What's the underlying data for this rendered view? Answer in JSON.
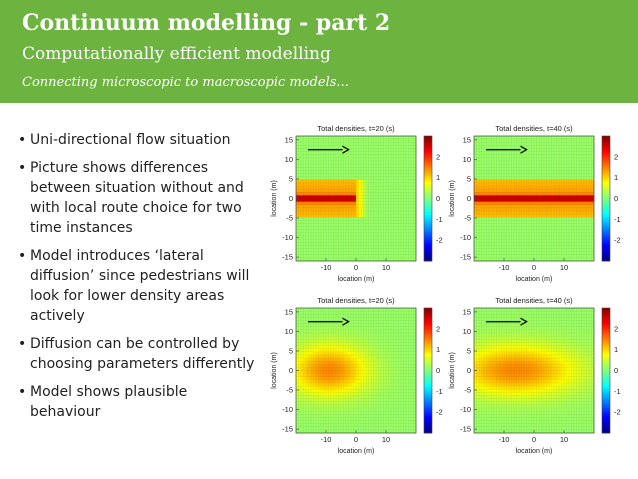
{
  "slide": {
    "title": "Continuum modelling - part 2",
    "subtitle": "Computationally efficient modelling",
    "tagline": "Connecting microscopic to macroscopic models...",
    "bullets": [
      "Uni-directional flow situation",
      "Picture shows differences between situation without and with local route choice for two time instances",
      "Model introduces ‘lateral diffusion’ since pedestrians will look for lower density areas actively",
      "Diffusion can be controlled by choosing parameters differently",
      "Model shows plausible behaviour"
    ],
    "colors": {
      "header": "#6db33f",
      "field": "#62d162",
      "arrow": "#111111"
    }
  },
  "chart_data": [
    {
      "type": "heatmap",
      "title": "Total densities, t=20 (s)",
      "xlabel": "location (m)",
      "ylabel": "location (m)",
      "xticks": [
        "-10",
        "0",
        "10"
      ],
      "yticks": [
        "15",
        "10",
        "5",
        "0",
        "-5",
        "-10",
        "-15"
      ],
      "xlim": [
        -20,
        20
      ],
      "ylim": [
        -16,
        16
      ],
      "colorbar_ticks": [
        "2",
        "1",
        "0",
        "-1",
        "-2"
      ],
      "clim": [
        -3,
        3
      ],
      "pattern": "band",
      "band_half_width": 5,
      "x_extent": 0,
      "arrow": "right"
    },
    {
      "type": "heatmap",
      "title": "Total densities, t=40 (s)",
      "xlabel": "location (m)",
      "ylabel": "location (m)",
      "xticks": [
        "-10",
        "0",
        "10"
      ],
      "yticks": [
        "15",
        "10",
        "5",
        "0",
        "-5",
        "-10",
        "-15"
      ],
      "xlim": [
        -20,
        20
      ],
      "ylim": [
        -16,
        16
      ],
      "colorbar_ticks": [
        "2",
        "1",
        "0",
        "-1",
        "-2"
      ],
      "clim": [
        -3,
        3
      ],
      "pattern": "band",
      "band_half_width": 5,
      "x_extent": 20,
      "arrow": "right"
    },
    {
      "type": "heatmap",
      "title": "Total densities, t=20 (s)",
      "xlabel": "location (m)",
      "ylabel": "location (m)",
      "xticks": [
        "-10",
        "0",
        "10"
      ],
      "yticks": [
        "15",
        "10",
        "5",
        "0",
        "-5",
        "-10",
        "-15"
      ],
      "xlim": [
        -20,
        20
      ],
      "ylim": [
        -16,
        16
      ],
      "colorbar_ticks": [
        "2",
        "1",
        "0",
        "-1",
        "-2"
      ],
      "clim": [
        -3,
        3
      ],
      "pattern": "diffuse",
      "band_half_width": 7,
      "x_extent": 0,
      "arrow": "right"
    },
    {
      "type": "heatmap",
      "title": "Total densities, t=40 (s)",
      "xlabel": "location (m)",
      "ylabel": "location (m)",
      "xticks": [
        "-10",
        "0",
        "10"
      ],
      "yticks": [
        "15",
        "10",
        "5",
        "0",
        "-5",
        "-10",
        "-15"
      ],
      "xlim": [
        -20,
        20
      ],
      "ylim": [
        -16,
        16
      ],
      "colorbar_ticks": [
        "2",
        "1",
        "0",
        "-1",
        "-2"
      ],
      "clim": [
        -3,
        3
      ],
      "pattern": "diffuse",
      "band_half_width": 7,
      "x_extent": 20,
      "arrow": "right"
    }
  ]
}
